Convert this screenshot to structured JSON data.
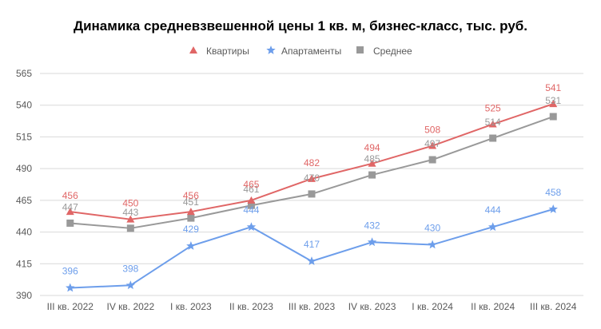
{
  "chart_data": {
    "type": "line",
    "title": "Динамика средневзвешенной цены 1 кв. м, бизнес-класс, тыс. руб.",
    "xlabel": "",
    "ylabel": "",
    "ylim": [
      390,
      565
    ],
    "yticks": [
      390,
      415,
      440,
      465,
      490,
      515,
      540,
      565
    ],
    "grid": true,
    "legend_position": "top-center",
    "categories": [
      "III кв. 2022",
      "IV кв. 2022",
      "I кв. 2023",
      "II кв. 2023",
      "III кв. 2023",
      "IV кв. 2023",
      "I кв. 2024",
      "II кв. 2024",
      "III кв. 2024"
    ],
    "series": [
      {
        "name": "Квартиры",
        "marker": "triangle",
        "color": "#e06666",
        "label_position": "above",
        "values": [
          456,
          450,
          456,
          465,
          482,
          494,
          508,
          525,
          541
        ]
      },
      {
        "name": "Апартаменты",
        "marker": "star",
        "color": "#6d9eeb",
        "label_position": "above",
        "values": [
          396,
          398,
          429,
          444,
          417,
          432,
          430,
          444,
          458
        ]
      },
      {
        "name": "Среднее",
        "marker": "square",
        "color": "#999999",
        "label_position": "above",
        "values": [
          447,
          443,
          451,
          461,
          470,
          485,
          497,
          514,
          531
        ]
      }
    ]
  }
}
